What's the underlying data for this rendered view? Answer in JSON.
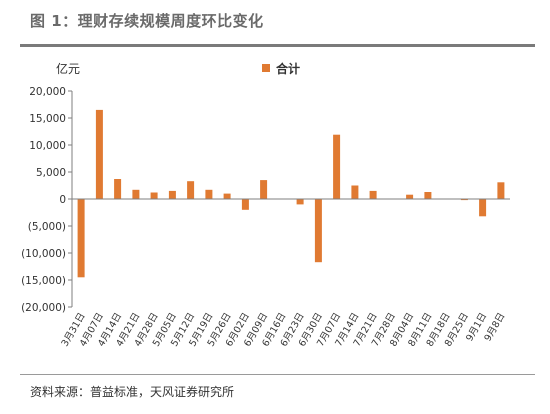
{
  "header": {
    "title": "图 1：理财存续规模周度环比变化"
  },
  "chart_data": {
    "type": "bar",
    "unit": "亿元",
    "series": [
      {
        "name": "合计",
        "color": "#e07a32",
        "values": [
          -14500,
          16500,
          3700,
          1700,
          1200,
          1500,
          3300,
          1700,
          1000,
          -2000,
          3500,
          0,
          -1000,
          -11700,
          11900,
          2500,
          1500,
          0,
          800,
          1300,
          0,
          -200,
          -3200,
          3100
        ]
      }
    ],
    "categories": [
      "3月31日",
      "4月07日",
      "4月14日",
      "4月21日",
      "4月28日",
      "5月05日",
      "5月12日",
      "5月19日",
      "5月26日",
      "6月02日",
      "6月09日",
      "6月16日",
      "6月23日",
      "6月30日",
      "7月07日",
      "7月14日",
      "7月21日",
      "7月28日",
      "8月04日",
      "8月11日",
      "8月18日",
      "8月25日",
      "9月1日",
      "9月8日"
    ],
    "y_ticks": [
      "20,000",
      "15,000",
      "10,000",
      "5,000",
      "0",
      "(5,000)",
      "(10,000)",
      "(15,000)",
      "(20,000)"
    ],
    "ylim": [
      -20000,
      20000
    ],
    "grid": false,
    "legend_position": "top-center"
  },
  "footer": {
    "source": "资料来源：普益标准，天风证券研究所"
  }
}
